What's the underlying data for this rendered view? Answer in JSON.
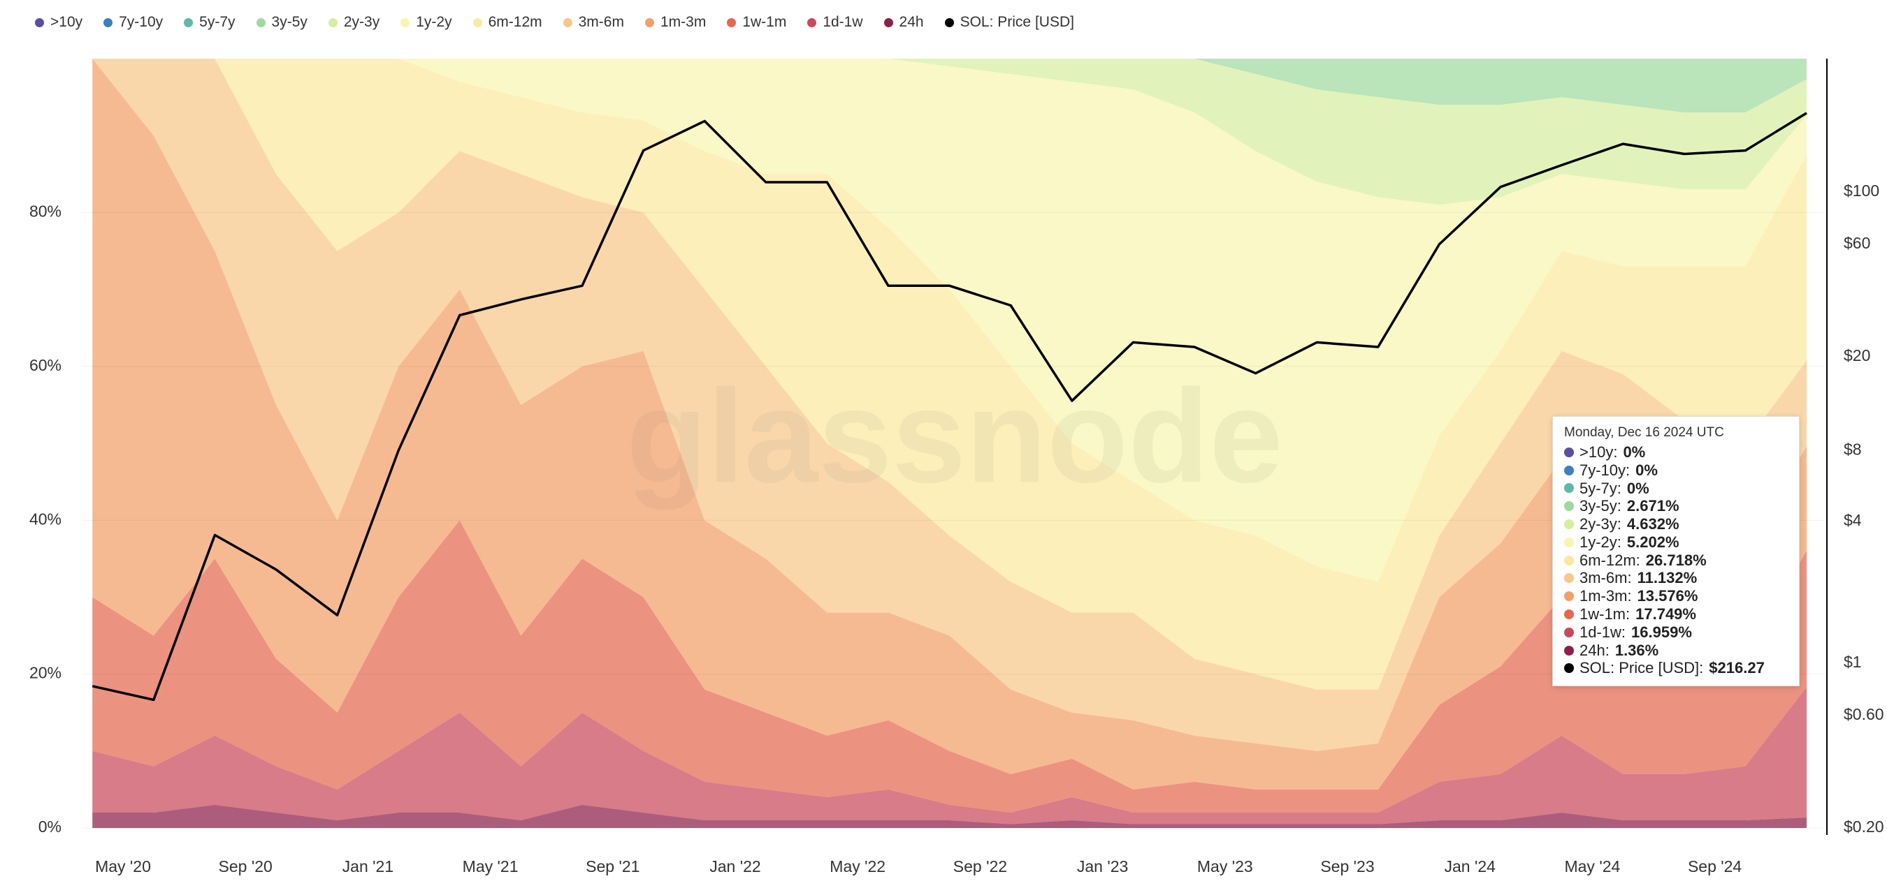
{
  "chart_data": {
    "type": "stacked_area",
    "watermark": "glassnode",
    "x": [
      "2020-04",
      "2020-06",
      "2020-08",
      "2020-10",
      "2020-12",
      "2021-02",
      "2021-04",
      "2021-06",
      "2021-08",
      "2021-10",
      "2021-12",
      "2022-02",
      "2022-04",
      "2022-06",
      "2022-08",
      "2022-10",
      "2022-12",
      "2023-02",
      "2023-04",
      "2023-06",
      "2023-08",
      "2023-10",
      "2023-12",
      "2024-02",
      "2024-04",
      "2024-06",
      "2024-08",
      "2024-10",
      "2024-12"
    ],
    "xticks": [
      {
        "value": "2020-05",
        "label": "May '20"
      },
      {
        "value": "2020-09",
        "label": "Sep '20"
      },
      {
        "value": "2021-01",
        "label": "Jan '21"
      },
      {
        "value": "2021-05",
        "label": "May '21"
      },
      {
        "value": "2021-09",
        "label": "Sep '21"
      },
      {
        "value": "2022-01",
        "label": "Jan '22"
      },
      {
        "value": "2022-05",
        "label": "May '22"
      },
      {
        "value": "2022-09",
        "label": "Sep '22"
      },
      {
        "value": "2023-01",
        "label": "Jan '23"
      },
      {
        "value": "2023-05",
        "label": "May '23"
      },
      {
        "value": "2023-09",
        "label": "Sep '23"
      },
      {
        "value": "2024-01",
        "label": "Jan '24"
      },
      {
        "value": "2024-05",
        "label": "May '24"
      },
      {
        "value": "2024-09",
        "label": "Sep '24"
      }
    ],
    "ylim": [
      0,
      100
    ],
    "yticks": [
      {
        "value": 0,
        "label": "0%"
      },
      {
        "value": 20,
        "label": "20%"
      },
      {
        "value": 40,
        "label": "40%"
      },
      {
        "value": 60,
        "label": "60%"
      },
      {
        "value": 80,
        "label": "80%"
      }
    ],
    "y2lim": [
      0.2,
      368
    ],
    "y2log": true,
    "y2ticks": [
      {
        "value": 0.2,
        "label": "$0.20"
      },
      {
        "value": 0.6,
        "label": "$0.60"
      },
      {
        "value": 1,
        "label": "$1"
      },
      {
        "value": 4,
        "label": "$4"
      },
      {
        "value": 8,
        "label": "$8"
      },
      {
        "value": 20,
        "label": "$20"
      },
      {
        "value": 60,
        "label": "$60"
      },
      {
        "value": 100,
        "label": "$100"
      }
    ],
    "fill_opacity": 0.72,
    "series": [
      {
        "name": ">10y",
        "color": "#5b4ea0",
        "values": [
          0,
          0,
          0,
          0,
          0,
          0,
          0,
          0,
          0,
          0,
          0,
          0,
          0,
          0,
          0,
          0,
          0,
          0,
          0,
          0,
          0,
          0,
          0,
          0,
          0,
          0,
          0,
          0,
          0
        ]
      },
      {
        "name": "7y-10y",
        "color": "#3f7fbf",
        "values": [
          0,
          0,
          0,
          0,
          0,
          0,
          0,
          0,
          0,
          0,
          0,
          0,
          0,
          0,
          0,
          0,
          0,
          0,
          0,
          0,
          0,
          0,
          0,
          0,
          0,
          0,
          0,
          0,
          0
        ]
      },
      {
        "name": "5y-7y",
        "color": "#5fb8a8",
        "values": [
          0,
          0,
          0,
          0,
          0,
          0,
          0,
          0,
          0,
          0,
          0,
          0,
          0,
          0,
          0,
          0,
          0,
          0,
          0,
          0,
          0,
          0,
          0,
          0,
          0,
          0,
          0,
          0,
          0
        ]
      },
      {
        "name": "3y-5y",
        "color": "#9fd9a0",
        "values": [
          0,
          0,
          0,
          0,
          0,
          0,
          0,
          0,
          0,
          0,
          0,
          0,
          0,
          0,
          0,
          0,
          0,
          0,
          0,
          2,
          4,
          5,
          6,
          6,
          5,
          6,
          7,
          7,
          2.671
        ]
      },
      {
        "name": "2y-3y",
        "color": "#d5eea0",
        "values": [
          0,
          0,
          0,
          0,
          0,
          0,
          0,
          0,
          0,
          0,
          0,
          0,
          0,
          0,
          1,
          2,
          3,
          4,
          7,
          10,
          12,
          13,
          13,
          12,
          10,
          10,
          10,
          10,
          4.632
        ]
      },
      {
        "name": "1y-2y",
        "color": "#f7f5b0",
        "values": [
          0,
          0,
          0,
          0,
          0,
          0,
          3,
          5,
          7,
          8,
          12,
          15,
          15,
          22,
          29,
          38,
          47,
          51,
          53,
          50,
          50,
          50,
          30,
          20,
          10,
          11,
          10,
          10,
          5.202
        ]
      },
      {
        "name": "6m-12m",
        "color": "#fbe9a0",
        "values": [
          0,
          0,
          0,
          15,
          25,
          20,
          9,
          10,
          11,
          12,
          18,
          25,
          35,
          33,
          32,
          28,
          22,
          17,
          18,
          18,
          16,
          14,
          13,
          12,
          13,
          14,
          20,
          23,
          26.718
        ]
      },
      {
        "name": "3m-6m",
        "color": "#f8c88a",
        "values": [
          0,
          10,
          25,
          30,
          35,
          20,
          18,
          30,
          22,
          18,
          30,
          25,
          22,
          17,
          13,
          14,
          13,
          14,
          10,
          9,
          8,
          7,
          8,
          13,
          14,
          22,
          18,
          14,
          11.132
        ]
      },
      {
        "name": "1m-3m",
        "color": "#f2a06a",
        "values": [
          70,
          65,
          40,
          33,
          25,
          30,
          30,
          30,
          25,
          32,
          22,
          20,
          16,
          14,
          15,
          11,
          6,
          9,
          6,
          6,
          5,
          6,
          14,
          16,
          18,
          18,
          16,
          14,
          13.576
        ]
      },
      {
        "name": "1w-1m",
        "color": "#e4684f",
        "values": [
          20,
          17,
          23,
          14,
          10,
          20,
          25,
          17,
          20,
          20,
          12,
          10,
          8,
          9,
          7,
          5,
          5,
          3,
          4,
          3,
          3,
          3,
          10,
          14,
          18,
          12,
          12,
          14,
          17.749
        ]
      },
      {
        "name": "1d-1w",
        "color": "#c84a5a",
        "values": [
          8,
          6,
          9,
          6,
          4,
          8,
          13,
          7,
          12,
          8,
          5,
          4,
          3,
          4,
          2,
          1.5,
          3,
          1.5,
          1.5,
          1.5,
          1.5,
          1.5,
          5,
          6,
          10,
          6,
          6,
          7,
          16.959
        ]
      },
      {
        "name": "24h",
        "color": "#8e1f4a",
        "values": [
          2,
          2,
          3,
          2,
          1,
          2,
          2,
          1,
          3,
          2,
          1,
          1,
          1,
          1,
          1,
          0.5,
          1,
          0.5,
          0.5,
          0.5,
          0.5,
          0.5,
          1,
          1,
          2,
          1,
          1,
          1,
          1.36
        ]
      },
      {
        "name": "SOL: Price [USD]",
        "color": "#000000",
        "axis": "y2",
        "values": [
          0.8,
          0.7,
          3.5,
          2.5,
          1.6,
          8,
          30,
          35,
          40,
          150,
          200,
          110,
          110,
          40,
          40,
          33,
          13,
          23,
          22,
          17,
          23,
          22,
          60,
          105,
          130,
          160,
          145,
          150,
          216.27
        ]
      }
    ],
    "tooltip": {
      "title": "Monday, Dec 16 2024 UTC",
      "values": [
        "0%",
        "0%",
        "0%",
        "2.671%",
        "4.632%",
        "5.202%",
        "26.718%",
        "11.132%",
        "13.576%",
        "17.749%",
        "16.959%",
        "1.36%",
        "$216.27"
      ]
    }
  }
}
